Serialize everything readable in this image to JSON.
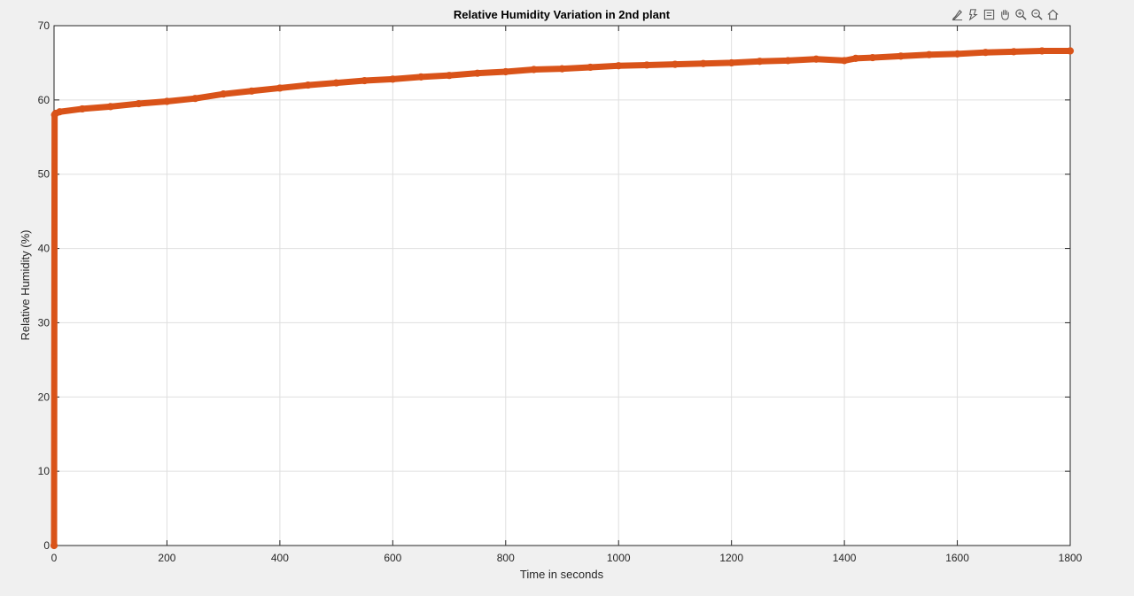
{
  "chart_data": {
    "type": "line",
    "title": "Relative Humidity Variation in 2nd plant",
    "xlabel": "Time in seconds",
    "ylabel": "Relative Humidity (%)",
    "xlim": [
      0,
      1800
    ],
    "ylim": [
      0,
      70
    ],
    "xticks": [
      0,
      200,
      400,
      600,
      800,
      1000,
      1200,
      1400,
      1600,
      1800
    ],
    "yticks": [
      0,
      10,
      20,
      30,
      40,
      50,
      60,
      70
    ],
    "grid": true,
    "legend": "none",
    "marker": "circle",
    "color": "#d95319",
    "series": [
      {
        "x": [
          0,
          1,
          3,
          10,
          50,
          100,
          150,
          200,
          250,
          300,
          350,
          400,
          450,
          500,
          550,
          600,
          650,
          700,
          750,
          800,
          850,
          900,
          950,
          1000,
          1050,
          1100,
          1150,
          1200,
          1250,
          1300,
          1350,
          1400,
          1420,
          1450,
          1500,
          1550,
          1600,
          1650,
          1700,
          1750,
          1800
        ],
        "y": [
          0,
          58,
          58.2,
          58.4,
          58.8,
          59.1,
          59.5,
          59.8,
          60.2,
          60.8,
          61.2,
          61.6,
          62.0,
          62.3,
          62.6,
          62.8,
          63.1,
          63.3,
          63.6,
          63.8,
          64.1,
          64.2,
          64.4,
          64.6,
          64.7,
          64.8,
          64.9,
          65.0,
          65.2,
          65.3,
          65.5,
          65.3,
          65.6,
          65.7,
          65.9,
          66.1,
          66.2,
          66.4,
          66.5,
          66.6,
          66.6
        ]
      }
    ]
  },
  "toolbar": {
    "icons": [
      "brush-icon",
      "data-tips-icon",
      "export-icon",
      "pan-icon",
      "zoom-in-icon",
      "zoom-out-icon",
      "home-icon"
    ]
  }
}
